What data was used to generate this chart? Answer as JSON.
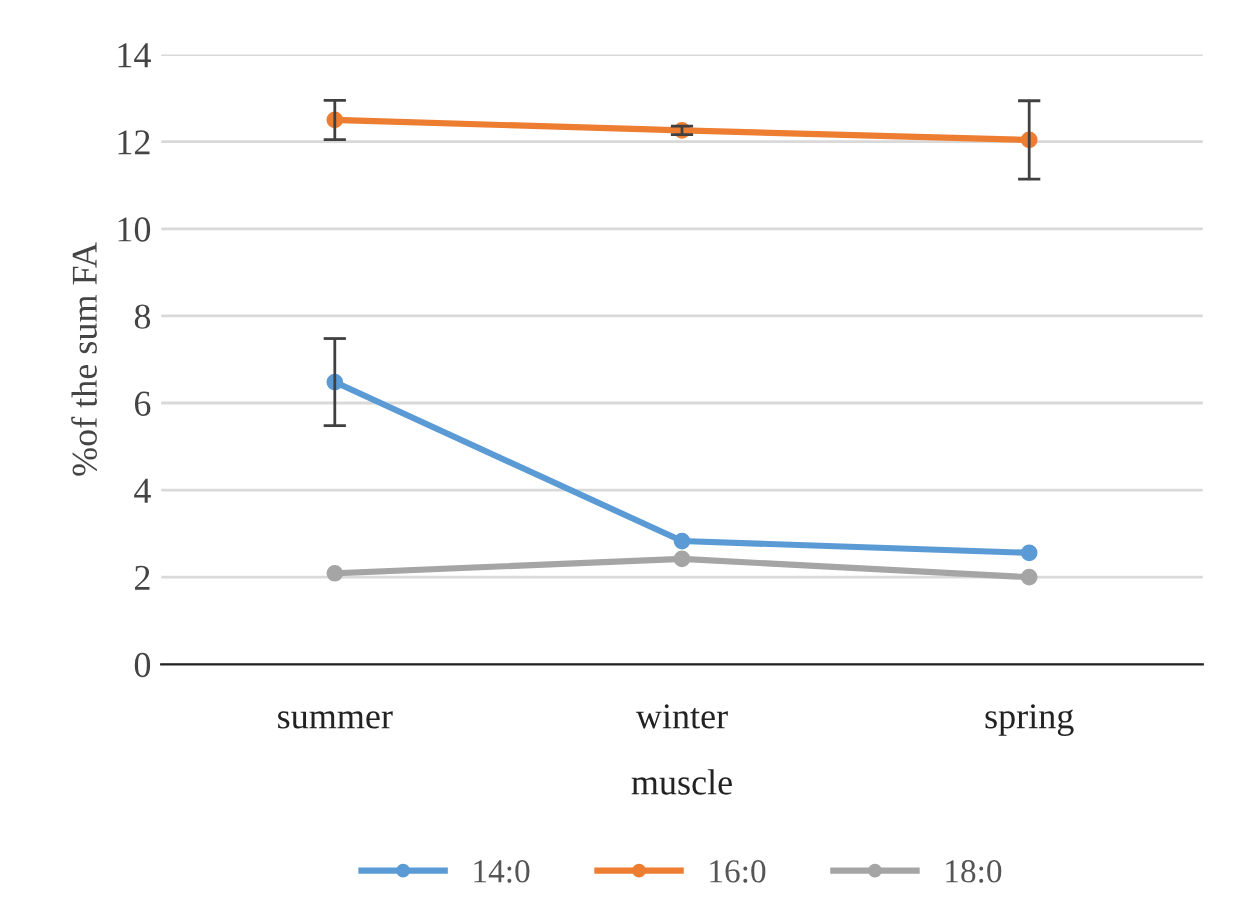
{
  "chart_data": {
    "type": "line",
    "xlabel": "muscle",
    "ylabel": "%of the sum FA",
    "categories": [
      "summer",
      "winter",
      "spring"
    ],
    "series": [
      {
        "name": "14:0",
        "color": "#5b9bd5",
        "values": [
          6.48,
          2.83,
          2.56
        ],
        "errors": [
          1.0,
          null,
          null
        ]
      },
      {
        "name": "16:0",
        "color": "#ed7d31",
        "values": [
          12.5,
          12.26,
          12.04
        ],
        "errors": [
          0.45,
          0.1,
          0.9
        ]
      },
      {
        "name": "18:0",
        "color": "#a5a5a5",
        "values": [
          2.09,
          2.42,
          2.0
        ],
        "errors": [
          null,
          null,
          null
        ]
      }
    ],
    "ylim": [
      0,
      14
    ],
    "yticks": [
      0,
      2,
      4,
      6,
      8,
      10,
      12,
      14
    ],
    "grid": "y",
    "legend": "bottom",
    "marker": "circle",
    "line_style": "solid"
  }
}
